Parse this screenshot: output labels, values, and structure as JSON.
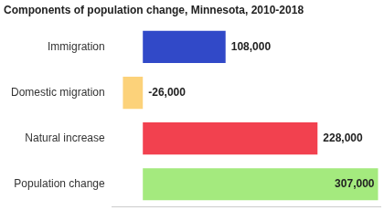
{
  "chart_data": {
    "type": "bar",
    "orientation": "horizontal",
    "title": "Components of population change, Minnesota, 2010-2018",
    "categories": [
      "Immigration",
      "Domestic migration",
      "Natural increase",
      "Population change"
    ],
    "values": [
      108000,
      -26000,
      228000,
      307000
    ],
    "value_labels": [
      "108,000",
      "-26,000",
      "228,000",
      "307,000"
    ],
    "colors": [
      "#3149c8",
      "#fcd27a",
      "#f2414f",
      "#a4ea7e"
    ],
    "xlim": [
      -40000,
      310000
    ],
    "data_labels": true,
    "tick_labels": "y",
    "grid": false
  }
}
